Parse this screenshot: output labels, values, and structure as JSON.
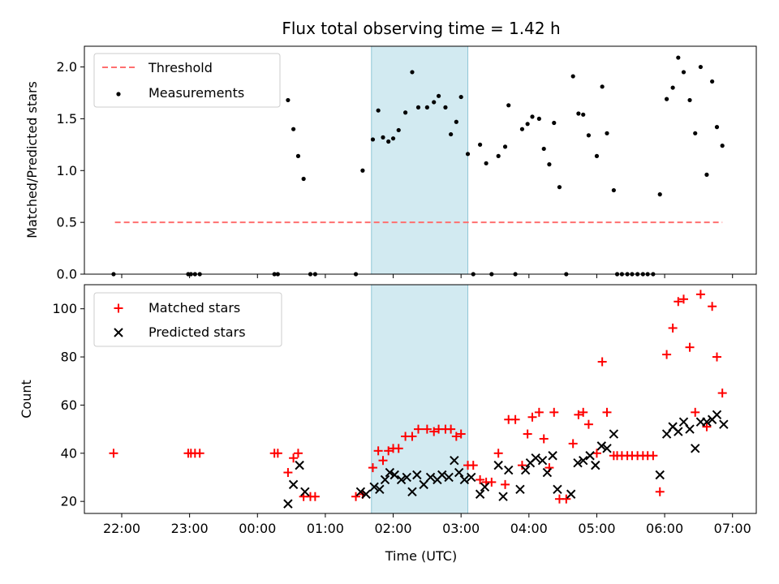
{
  "chart_data": [
    {
      "type": "scatter",
      "title": "Flux total observing time = 1.42 h",
      "xlabel": "",
      "ylabel": "Matched/Predicted stars",
      "ylim": [
        0,
        2.2
      ],
      "xlim": [
        21.45,
        31.35
      ],
      "yticks": [
        0.0,
        0.5,
        1.0,
        1.5,
        2.0
      ],
      "ytick_labels": [
        "0.0",
        "0.5",
        "1.0",
        "1.5",
        "2.0"
      ],
      "shaded_span": [
        25.68,
        27.1
      ],
      "shaded_color": "#add8e6",
      "threshold": {
        "label": "Threshold",
        "value": 0.5,
        "x_range": [
          21.9,
          30.85
        ],
        "color": "#ff6f6f"
      },
      "series": [
        {
          "name": "Measurements",
          "color": "#000000",
          "x": [
            21.88,
            22.98,
            23.02,
            23.08,
            23.15,
            24.25,
            24.3,
            24.45,
            24.53,
            24.6,
            24.68,
            24.78,
            24.85,
            25.45,
            25.55,
            25.7,
            25.78,
            25.85,
            25.93,
            26.0,
            26.08,
            26.18,
            26.28,
            26.37,
            26.5,
            26.6,
            26.67,
            26.77,
            26.85,
            26.93,
            27.0,
            27.1,
            27.18,
            27.28,
            27.37,
            27.45,
            27.55,
            27.65,
            27.7,
            27.8,
            27.9,
            27.98,
            28.05,
            28.15,
            28.22,
            28.3,
            28.37,
            28.45,
            28.55,
            28.65,
            28.73,
            28.8,
            28.88,
            29.0,
            29.08,
            29.15,
            29.25,
            29.3,
            29.37,
            29.45,
            29.52,
            29.6,
            29.68,
            29.75,
            29.83,
            29.93,
            30.03,
            30.12,
            30.2,
            30.28,
            30.37,
            30.45,
            30.53,
            30.62,
            30.7,
            30.77,
            30.85
          ],
          "values": [
            0.0,
            0.0,
            0.0,
            0.0,
            0.0,
            0.0,
            0.0,
            1.68,
            1.4,
            1.14,
            0.92,
            0.0,
            0.0,
            0.0,
            1.0,
            1.3,
            1.58,
            1.32,
            1.28,
            1.31,
            1.39,
            1.56,
            1.95,
            1.61,
            1.61,
            1.66,
            1.72,
            1.61,
            1.35,
            1.47,
            1.71,
            1.16,
            0.0,
            1.25,
            1.07,
            0.0,
            1.14,
            1.23,
            1.63,
            0.0,
            1.4,
            1.45,
            1.52,
            1.5,
            1.21,
            1.06,
            1.46,
            0.84,
            0.0,
            1.91,
            1.55,
            1.54,
            1.34,
            1.14,
            1.81,
            1.36,
            0.81,
            0.0,
            0.0,
            0.0,
            0.0,
            0.0,
            0.0,
            0.0,
            0.0,
            0.77,
            1.69,
            1.8,
            2.09,
            1.95,
            1.68,
            1.36,
            2.0,
            0.96,
            1.86,
            1.42,
            1.24
          ]
        }
      ]
    },
    {
      "type": "scatter",
      "title": "",
      "xlabel": "Time (UTC)",
      "ylabel": "Count",
      "ylim": [
        15,
        110
      ],
      "xlim": [
        21.45,
        31.35
      ],
      "yticks": [
        20,
        40,
        60,
        80,
        100
      ],
      "ytick_labels": [
        "20",
        "40",
        "60",
        "80",
        "100"
      ],
      "xticks": [
        22,
        23,
        24,
        25,
        26,
        27,
        28,
        29,
        30,
        31
      ],
      "xtick_labels": [
        "22:00",
        "23:00",
        "00:00",
        "01:00",
        "02:00",
        "03:00",
        "04:00",
        "05:00",
        "06:00",
        "07:00"
      ],
      "shaded_span": [
        25.68,
        27.1
      ],
      "shaded_color": "#add8e6",
      "series": [
        {
          "name": "Matched stars",
          "marker": "plus",
          "color": "#ff0000",
          "x": [
            21.88,
            22.98,
            23.02,
            23.08,
            23.15,
            24.25,
            24.3,
            24.45,
            24.53,
            24.6,
            24.68,
            24.78,
            24.85,
            25.45,
            25.55,
            25.7,
            25.78,
            25.85,
            25.93,
            26.0,
            26.08,
            26.18,
            26.28,
            26.37,
            26.5,
            26.6,
            26.67,
            26.77,
            26.85,
            26.93,
            27.0,
            27.1,
            27.18,
            27.28,
            27.37,
            27.45,
            27.55,
            27.65,
            27.7,
            27.8,
            27.9,
            27.98,
            28.05,
            28.15,
            28.22,
            28.3,
            28.37,
            28.45,
            28.55,
            28.65,
            28.73,
            28.8,
            28.88,
            29.0,
            29.08,
            29.15,
            29.25,
            29.3,
            29.37,
            29.45,
            29.52,
            29.6,
            29.68,
            29.75,
            29.83,
            29.93,
            30.03,
            30.12,
            30.2,
            30.28,
            30.37,
            30.45,
            30.53,
            30.62,
            30.7,
            30.77,
            30.85
          ],
          "values": [
            40,
            40,
            40,
            40,
            40,
            40,
            40,
            32,
            38,
            40,
            22,
            22,
            22,
            22,
            23,
            34,
            41,
            37,
            41,
            42,
            42,
            47,
            47,
            50,
            50,
            49,
            50,
            50,
            50,
            47,
            48,
            35,
            35,
            29,
            28,
            28,
            40,
            27,
            54,
            54,
            35,
            48,
            55,
            57,
            46,
            34,
            57,
            21,
            21,
            44,
            56,
            57,
            52,
            40,
            78,
            57,
            39,
            39,
            39,
            39,
            39,
            39,
            39,
            39,
            39,
            24,
            81,
            92,
            103,
            104,
            84,
            57,
            106,
            51,
            101,
            80,
            65
          ]
        },
        {
          "name": "Predicted stars",
          "marker": "x",
          "color": "#000000",
          "x": [
            24.45,
            24.53,
            24.62,
            24.7,
            25.52,
            25.6,
            25.72,
            25.8,
            25.88,
            25.95,
            26.02,
            26.12,
            26.2,
            26.28,
            26.35,
            26.45,
            26.55,
            26.65,
            26.72,
            26.82,
            26.9,
            26.97,
            27.05,
            27.15,
            27.28,
            27.35,
            27.55,
            27.62,
            27.7,
            27.87,
            27.95,
            28.02,
            28.1,
            28.2,
            28.27,
            28.35,
            28.42,
            28.62,
            28.72,
            28.8,
            28.9,
            28.98,
            29.07,
            29.15,
            29.25,
            29.93,
            30.03,
            30.12,
            30.2,
            30.28,
            30.37,
            30.45,
            30.53,
            30.62,
            30.7,
            30.77,
            30.87
          ],
          "values": [
            19,
            27,
            35,
            24,
            24,
            23,
            26,
            25,
            29,
            32,
            31,
            29,
            30,
            24,
            31,
            27,
            30,
            29,
            31,
            30,
            37,
            32,
            29,
            30,
            23,
            26,
            35,
            22,
            33,
            25,
            33,
            36,
            38,
            37,
            32,
            39,
            25,
            23,
            36,
            37,
            39,
            35,
            43,
            42,
            48,
            31,
            48,
            51,
            49,
            53,
            50,
            42,
            53,
            53,
            54,
            56,
            52
          ]
        }
      ]
    }
  ]
}
